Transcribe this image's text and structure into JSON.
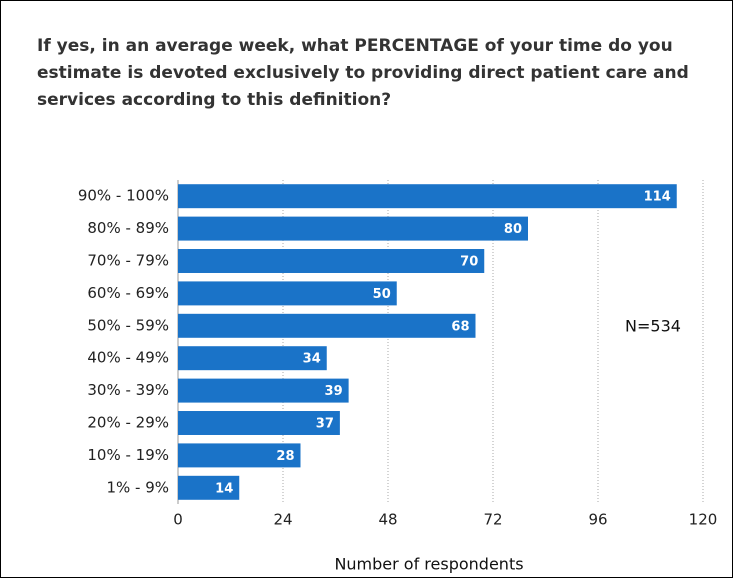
{
  "chart_data": {
    "type": "bar",
    "orientation": "horizontal",
    "title": "If yes, in an average week, what PERCENTAGE of your time do you estimate is devoted exclusively to providing direct patient care and services according to this definition?",
    "categories": [
      "90% - 100%",
      "80% - 89%",
      "70% - 79%",
      "60% - 69%",
      "50% - 59%",
      "40% - 49%",
      "30% - 39%",
      "20% - 29%",
      "10% - 19%",
      "1% - 9%"
    ],
    "values": [
      114,
      80,
      70,
      50,
      68,
      34,
      39,
      37,
      28,
      14
    ],
    "color": "#1a73c8",
    "xlim": [
      0,
      120
    ],
    "xticks": [
      0,
      24,
      48,
      72,
      96,
      120
    ],
    "xlabel": "Number of respondents",
    "annotation": "N=534",
    "grid": true
  }
}
